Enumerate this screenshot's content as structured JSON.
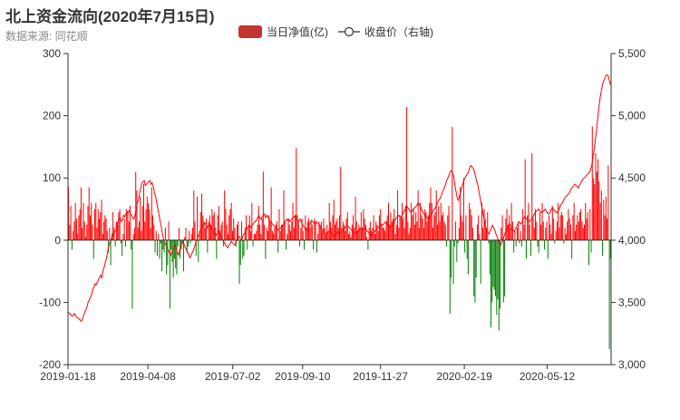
{
  "chart_data": {
    "type": "bar",
    "title": "北上资金流向(2020年7月15日)",
    "subtitle": "数据来源: 同花顺",
    "legend": {
      "position": "top-center",
      "bar_label": "当日净值(亿)",
      "line_label": "收盘价（右轴)"
    },
    "colors": {
      "positive": "#ff0000",
      "negative": "#008000",
      "line": "#ff0000",
      "legend_bar": "#c23531",
      "axis": "#333333"
    },
    "x_tick_labels": [
      "2019-01-18",
      "2019-04-08",
      "2019-07-02",
      "2019-09-10",
      "2019-11-27",
      "2020-02-19",
      "2020-05-12"
    ],
    "x_range": [
      "2019-01-18",
      "2020-07-15"
    ],
    "y_left_ticks": [
      -200,
      -100,
      0,
      100,
      200,
      300
    ],
    "y_left_range": [
      -200,
      300
    ],
    "y_right_ticks": [
      "3,000",
      "3,500",
      "4,000",
      "4,500",
      "5,000",
      "5,500"
    ],
    "y_right_range": [
      3000,
      5500
    ],
    "grid": false,
    "net_inflow_series": {
      "name": "当日净值(亿)",
      "values": [
        85,
        25,
        55,
        -15,
        15,
        30,
        60,
        35,
        10,
        40,
        50,
        85,
        20,
        60,
        30,
        5,
        25,
        55,
        85,
        40,
        60,
        25,
        -30,
        50,
        60,
        20,
        50,
        35,
        45,
        65,
        10,
        30,
        40,
        35,
        15,
        -20,
        20,
        -40,
        5,
        45,
        20,
        -10,
        30,
        25,
        45,
        50,
        -5,
        -25,
        10,
        35,
        -10,
        50,
        45,
        30,
        55,
        -15,
        -110,
        10,
        20,
        110,
        80,
        20,
        30,
        70,
        15,
        55,
        90,
        30,
        50,
        70,
        60,
        50,
        20,
        85,
        40,
        25,
        -20,
        15,
        -25,
        10,
        -30,
        -5,
        -50,
        -15,
        -20,
        20,
        -55,
        -40,
        30,
        -110,
        -15,
        -35,
        -60,
        -30,
        -45,
        -55,
        -10,
        20,
        -30,
        -15,
        -5,
        -50,
        5,
        20,
        -20,
        -10,
        15,
        -5,
        10,
        20,
        80,
        30,
        -25,
        70,
        -35,
        15,
        45,
        75,
        40,
        30,
        20,
        35,
        -20,
        30,
        40,
        25,
        50,
        40,
        45,
        20,
        -30,
        40,
        55,
        15,
        25,
        30,
        -10,
        80,
        50,
        25,
        10,
        40,
        50,
        60,
        15,
        35,
        20,
        -10,
        25,
        30,
        -70,
        -40,
        30,
        -30,
        -25,
        20,
        40,
        -15,
        25,
        40,
        15,
        60,
        -10,
        10,
        10,
        15,
        25,
        55,
        25,
        10,
        35,
        110,
        25,
        -30,
        20,
        15,
        40,
        30,
        85,
        15,
        10,
        20,
        25,
        30,
        -20,
        50,
        15,
        25,
        25,
        80,
        30,
        -15,
        10,
        35,
        25,
        15,
        30,
        60,
        20,
        40,
        148,
        40,
        30,
        -10,
        20,
        35,
        15,
        -15,
        40,
        20,
        30,
        35,
        20,
        30,
        25,
        -15,
        35,
        30,
        -20,
        10,
        30,
        25,
        30,
        15,
        35,
        20,
        10,
        25,
        15,
        60,
        30,
        20,
        40,
        65,
        25,
        30,
        35,
        20,
        40,
        118,
        20,
        30,
        25,
        15,
        35,
        45,
        10,
        15,
        5,
        25,
        40,
        20,
        70,
        30,
        15,
        25,
        20,
        45,
        20,
        50,
        35,
        25,
        5,
        -15,
        20,
        30,
        15,
        20,
        40,
        10,
        30,
        25,
        15,
        40,
        50,
        25,
        20,
        20,
        15,
        30,
        40,
        60,
        25,
        45,
        30,
        35,
        50,
        10,
        25,
        80,
        20,
        40,
        35,
        60,
        35,
        20,
        55,
        214,
        30,
        10,
        20,
        60,
        40,
        50,
        25,
        45,
        30,
        80,
        20,
        60,
        40,
        35,
        20,
        50,
        45,
        30,
        40,
        60,
        85,
        60,
        20,
        40,
        45,
        80,
        25,
        55,
        30,
        60,
        40,
        45,
        30,
        25,
        -10,
        40,
        55,
        -118,
        -60,
        182,
        -70,
        -10,
        30,
        -35,
        -5,
        20,
        85,
        40,
        30,
        100,
        -20,
        40,
        -30,
        -55,
        60,
        50,
        40,
        20,
        -90,
        -100,
        -60,
        25,
        40,
        10,
        -70,
        60,
        20,
        50,
        35,
        20,
        45,
        -5,
        -55,
        -140,
        -100,
        -75,
        -80,
        -90,
        -120,
        -95,
        -145,
        -110,
        20,
        40,
        -100,
        -90,
        35,
        50,
        25,
        40,
        20,
        60,
        30,
        -20,
        15,
        -10,
        20,
        30,
        -5,
        15,
        -10,
        50,
        25,
        130,
        -30,
        40,
        60,
        25,
        -25,
        140,
        35,
        20,
        50,
        30,
        -10,
        -20,
        45,
        25,
        60,
        30,
        -15,
        20,
        30,
        -30,
        40,
        25,
        10,
        55,
        35,
        -5,
        15,
        30,
        60,
        20,
        40,
        45,
        40,
        -5,
        20,
        10,
        30,
        50,
        35,
        25,
        -30,
        40,
        60,
        15,
        25,
        40,
        30,
        45,
        50,
        30,
        20,
        25,
        60,
        35,
        45,
        -40,
        50,
        -20,
        183,
        100,
        90,
        140,
        110,
        130,
        95,
        60,
        80,
        -25,
        65,
        40,
        70,
        35,
        120,
        -175,
        -30
      ]
    },
    "close_price_series": {
      "name": "收盘价（右轴)",
      "values": [
        3420,
        3410,
        3400,
        3390,
        3395,
        3410,
        3400,
        3380,
        3375,
        3370,
        3360,
        3350,
        3365,
        3390,
        3420,
        3440,
        3460,
        3500,
        3520,
        3540,
        3560,
        3600,
        3620,
        3650,
        3640,
        3660,
        3680,
        3700,
        3720,
        3700,
        3750,
        3780,
        3820,
        3850,
        3900,
        3950,
        3980,
        4000,
        4050,
        4030,
        4060,
        4080,
        4100,
        4150,
        4170,
        4180,
        4150,
        4160,
        4200,
        4190,
        4210,
        4230,
        4220,
        4240,
        4210,
        4200,
        4180,
        4170,
        4200,
        4250,
        4300,
        4320,
        4380,
        4420,
        4460,
        4470,
        4480,
        4440,
        4450,
        4460,
        4470,
        4480,
        4450,
        4460,
        4430,
        4380,
        4350,
        4300,
        4250,
        4200,
        4150,
        4100,
        4050,
        4000,
        3980,
        3960,
        3940,
        3920,
        3900,
        3880,
        3900,
        3920,
        3940,
        3960,
        3930,
        3900,
        3880,
        3920,
        3950,
        3970,
        3990,
        3960,
        3940,
        3920,
        3900,
        3880,
        3860,
        3880,
        3900,
        3920,
        3950,
        3980,
        4000,
        4030,
        4050,
        4080,
        4100,
        4120,
        4130,
        4140,
        4120,
        4100,
        4120,
        4130,
        4110,
        4090,
        4080,
        4060,
        4050,
        4040,
        4060,
        4080,
        4050,
        4030,
        4010,
        4000,
        3980,
        3960,
        3950,
        3940,
        3960,
        3970,
        3990,
        3980,
        3970,
        3960,
        3980,
        4000,
        4020,
        4030,
        4010,
        4000,
        4030,
        4050,
        4060,
        4080,
        4100,
        4110,
        4120,
        4100,
        4120,
        4130,
        4140,
        4150,
        4160,
        4180,
        4200,
        4180,
        4170,
        4190,
        4200,
        4210,
        4180,
        4200,
        4190,
        4170,
        4150,
        4140,
        4130,
        4120,
        4110,
        4100,
        4090,
        4080,
        4090,
        4100,
        4110,
        4120,
        4130,
        4150,
        4170,
        4160,
        4170,
        4150,
        4160,
        4170,
        4180,
        4190,
        4200,
        4170,
        4150,
        4160,
        4170,
        4150,
        4130,
        4110,
        4100,
        4090,
        4080,
        4100,
        4120,
        4140,
        4160,
        4150,
        4140,
        4130,
        4150,
        4140,
        4130,
        4120,
        4100,
        4090,
        4080,
        4070,
        4060,
        4050,
        4060,
        4070,
        4080,
        4060,
        4050,
        4040,
        4030,
        4050,
        4060,
        4070,
        4060,
        4050,
        4060,
        4070,
        4080,
        4100,
        4110,
        4120,
        4110,
        4100,
        4090,
        4080,
        4070,
        4060,
        4050,
        4060,
        4070,
        4080,
        4090,
        4100,
        4090,
        4080,
        4090,
        4100,
        4080,
        4070,
        4060,
        4050,
        4040,
        4050,
        4060,
        4070,
        4080,
        4090,
        4100,
        4110,
        4120,
        4130,
        4120,
        4130,
        4140,
        4150,
        4130,
        4120,
        4110,
        4100,
        4110,
        4120,
        4140,
        4160,
        4180,
        4190,
        4200,
        4190,
        4180,
        4200,
        4220,
        4240,
        4250,
        4280,
        4260,
        4250,
        4230,
        4220,
        4240,
        4250,
        4260,
        4270,
        4280,
        4300,
        4290,
        4270,
        4250,
        4230,
        4210,
        4200,
        4190,
        4180,
        4170,
        4190,
        4200,
        4210,
        4230,
        4250,
        4260,
        4280,
        4300,
        4320,
        4330,
        4350,
        4380,
        4400,
        4420,
        4450,
        4480,
        4500,
        4520,
        4550,
        4560,
        4540,
        4520,
        4450,
        4400,
        4350,
        4320,
        4350,
        4380,
        4420,
        4450,
        4480,
        4500,
        4520,
        4530,
        4550,
        4580,
        4600,
        4590,
        4580,
        4560,
        4520,
        4480,
        4450,
        4400,
        4350,
        4300,
        4250,
        4200,
        4150,
        4100,
        4080,
        4060,
        4050,
        4080,
        4100,
        4120,
        4100,
        4080,
        4050,
        4030,
        4000,
        3980,
        3960,
        3980,
        4000,
        4030,
        4060,
        4080,
        4100,
        4120,
        4130,
        4110,
        4090,
        4080,
        4070,
        4090,
        4110,
        4130,
        4150,
        4140,
        4130,
        4150,
        4170,
        4190,
        4180,
        4170,
        4160,
        4150,
        4160,
        4170,
        4180,
        4200,
        4220,
        4230,
        4240,
        4250,
        4240,
        4230,
        4220,
        4230,
        4240,
        4250,
        4230,
        4220,
        4210,
        4220,
        4240,
        4260,
        4250,
        4240,
        4230,
        4220,
        4230,
        4250,
        4270,
        4290,
        4300,
        4320,
        4340,
        4350,
        4360,
        4370,
        4380,
        4400,
        4420,
        4430,
        4440,
        4450,
        4440,
        4430,
        4420,
        4440,
        4460,
        4480,
        4490,
        4500,
        4510,
        4520,
        4530,
        4540,
        4550,
        4580,
        4620,
        4680,
        4750,
        4820,
        4900,
        5000,
        5080,
        5150,
        5200,
        5250,
        5280,
        5300,
        5320,
        5330,
        5320,
        5280,
        5250
      ]
    }
  }
}
